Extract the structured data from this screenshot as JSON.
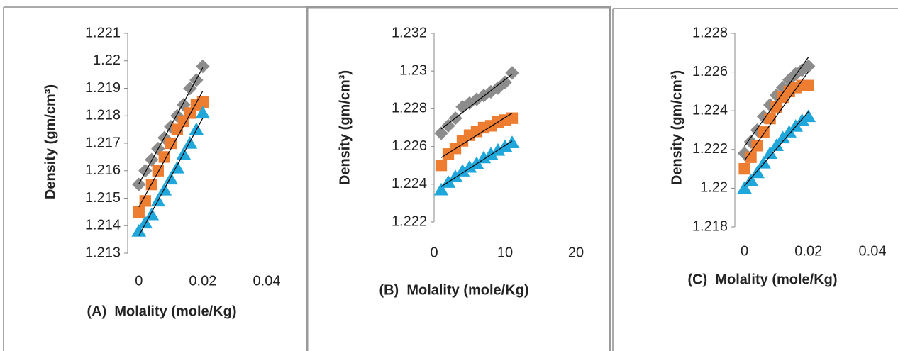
{
  "chart_data": [
    {
      "type": "scatter",
      "ylabel": "Density (gm/cm³)",
      "xlabel": "(A)  Molality (mole/Kg)",
      "x": [
        0,
        0.002,
        0.004,
        0.006,
        0.008,
        0.01,
        0.012,
        0.014,
        0.016,
        0.018,
        0.02
      ],
      "xlim": [
        -0.0035,
        0.04
      ],
      "xticks": [
        0,
        0.02,
        0.04
      ],
      "ylim": [
        1.213,
        1.221
      ],
      "yticks": [
        1.213,
        1.214,
        1.215,
        1.216,
        1.217,
        1.218,
        1.219,
        1.22,
        1.221
      ],
      "trendline": "linear",
      "series": [
        {
          "color": "#8c8c8c",
          "marker": "diamond",
          "values": [
            1.2155,
            1.216,
            1.2164,
            1.2168,
            1.2172,
            1.2176,
            1.218,
            1.2184,
            1.219,
            1.2193,
            1.2198
          ]
        },
        {
          "color": "#ed7d31",
          "marker": "square",
          "values": [
            1.2145,
            1.2149,
            1.2155,
            1.216,
            1.2165,
            1.217,
            1.2175,
            1.2178,
            1.2181,
            1.2184,
            1.2185
          ]
        },
        {
          "color": "#1fa7dc",
          "marker": "triangle",
          "values": [
            1.2138,
            1.2141,
            1.2144,
            1.2149,
            1.2153,
            1.2157,
            1.2161,
            1.2166,
            1.217,
            1.2175,
            1.2181
          ]
        }
      ]
    },
    {
      "type": "scatter",
      "ylabel": "Density (gm/cm³)",
      "xlabel": "(B)  Molality (mole/Kg)",
      "x": [
        1,
        2,
        3,
        4,
        5,
        6,
        7,
        8,
        9,
        10,
        11
      ],
      "xlim": [
        0,
        20
      ],
      "xticks": [
        0,
        10,
        20
      ],
      "ylim": [
        1.222,
        1.232
      ],
      "yticks": [
        1.222,
        1.224,
        1.226,
        1.228,
        1.23,
        1.232
      ],
      "trendline": "linear",
      "series": [
        {
          "color": "#8c8c8c",
          "marker": "diamond",
          "values": [
            1.2267,
            1.2271,
            1.2275,
            1.2281,
            1.2283,
            1.2285,
            1.2287,
            1.2289,
            1.2291,
            1.2294,
            1.2299
          ]
        },
        {
          "color": "#ed7d31",
          "marker": "square",
          "values": [
            1.225,
            1.2256,
            1.2259,
            1.2263,
            1.2266,
            1.2268,
            1.227,
            1.2271,
            1.2273,
            1.2274,
            1.2275
          ]
        },
        {
          "color": "#1fa7dc",
          "marker": "triangle",
          "values": [
            1.2237,
            1.2241,
            1.2244,
            1.2247,
            1.2249,
            1.2251,
            1.2254,
            1.2256,
            1.2258,
            1.226,
            1.2262
          ]
        }
      ]
    },
    {
      "type": "scatter",
      "ylabel": "Density (gm/cm³)",
      "xlabel": "(C)  Molality (mole/Kg)",
      "x": [
        0,
        0.002,
        0.004,
        0.006,
        0.008,
        0.01,
        0.012,
        0.014,
        0.016,
        0.018,
        0.02
      ],
      "xlim": [
        -0.003,
        0.04
      ],
      "xticks": [
        0,
        0.02,
        0.04
      ],
      "ylim": [
        1.218,
        1.228
      ],
      "yticks": [
        1.218,
        1.22,
        1.222,
        1.224,
        1.226,
        1.228
      ],
      "trendline": "linear",
      "series": [
        {
          "color": "#8c8c8c",
          "marker": "diamond",
          "values": [
            1.2218,
            1.2224,
            1.223,
            1.2237,
            1.2243,
            1.2248,
            1.2252,
            1.2256,
            1.2259,
            1.2261,
            1.2263
          ]
        },
        {
          "color": "#ed7d31",
          "marker": "square",
          "values": [
            1.221,
            1.2216,
            1.2222,
            1.2229,
            1.2236,
            1.2242,
            1.2247,
            1.225,
            1.2252,
            1.2253,
            1.2253
          ]
        },
        {
          "color": "#1fa7dc",
          "marker": "triangle",
          "values": [
            1.22,
            1.2204,
            1.2208,
            1.2213,
            1.2218,
            1.2222,
            1.2226,
            1.2229,
            1.2232,
            1.2235,
            1.2237
          ]
        }
      ]
    }
  ]
}
